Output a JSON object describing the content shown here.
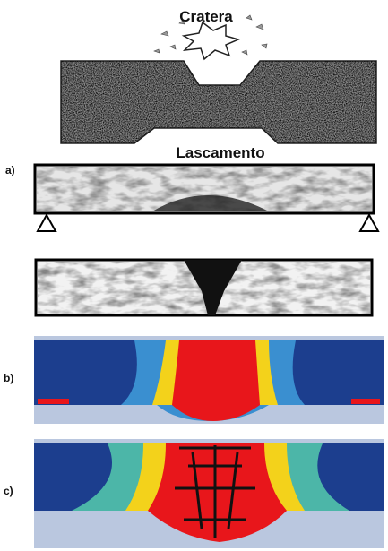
{
  "labels": {
    "crater": "Cratera",
    "spalling": "Lascamento"
  },
  "panels": [
    "a)",
    "b)",
    "c)"
  ]
}
